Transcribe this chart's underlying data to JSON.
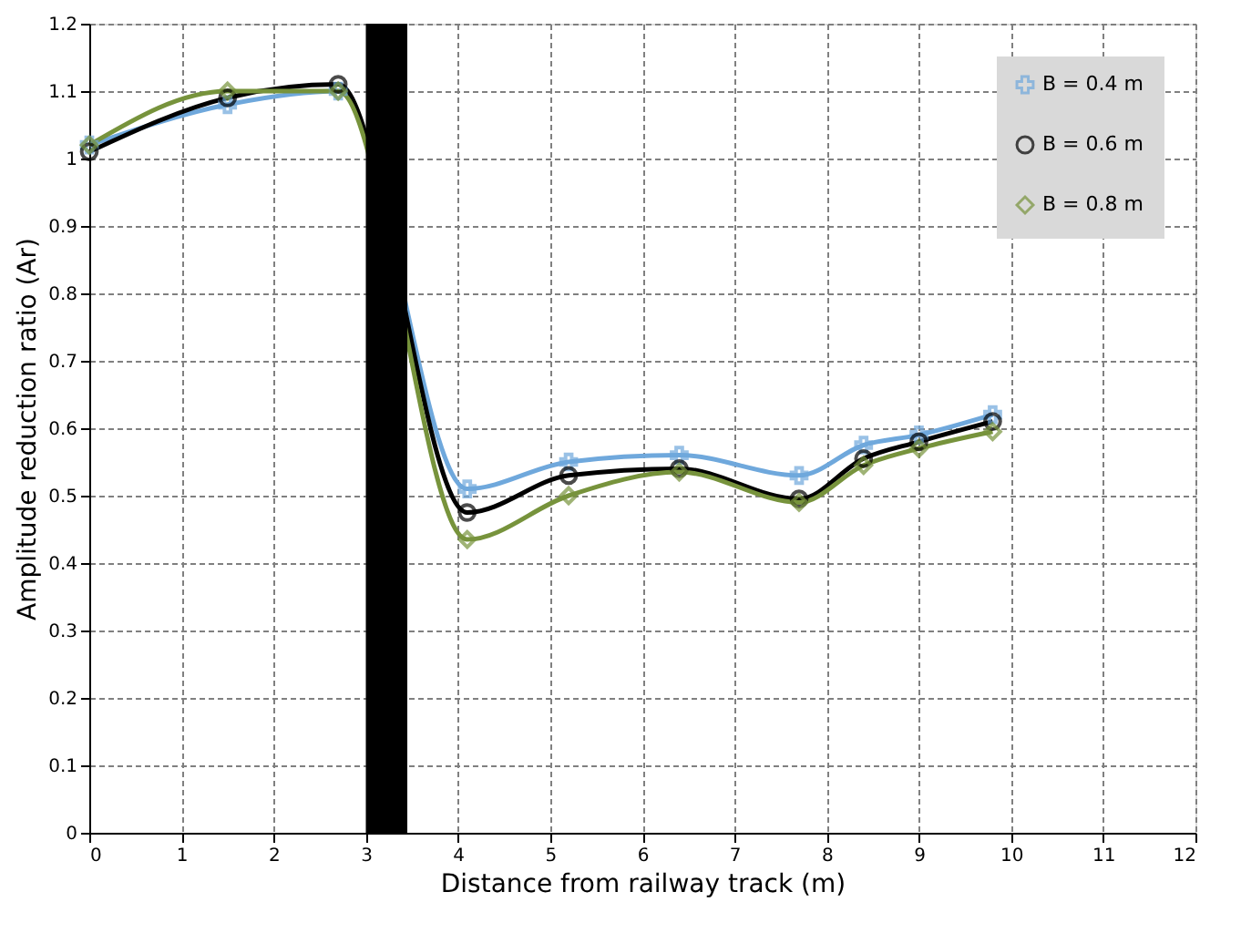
{
  "chart_data": {
    "type": "line",
    "xlabel": "Distance from railway track (m)",
    "ylabel": "Amplitude reduction ratio (Ar)",
    "xlim": [
      0,
      12
    ],
    "xticks": [
      0,
      1,
      2,
      3,
      4,
      5,
      6,
      7,
      8,
      9,
      10,
      11,
      12
    ],
    "ylim": [
      0,
      1.2
    ],
    "yticks": [
      0,
      0.1,
      0.2,
      0.3,
      0.4,
      0.5,
      0.6,
      0.7,
      0.8,
      0.9,
      1,
      1.1,
      1.2
    ],
    "grid": true,
    "legend": "top right",
    "line_style": "solid",
    "x": [
      0,
      1.5,
      2.7,
      4.1,
      5.2,
      6.4,
      7.7,
      8.4,
      9.0,
      9.8
    ],
    "series": [
      {
        "name": "B = 0.4 m",
        "color": "#6fa8dc",
        "marker": "cross",
        "values": [
          1.02,
          1.08,
          1.1,
          0.51,
          0.55,
          0.56,
          0.53,
          0.575,
          0.59,
          0.62
        ]
      },
      {
        "name": "B = 0.6 m",
        "color": "#000000",
        "marker": "circle",
        "values": [
          1.01,
          1.09,
          1.11,
          0.475,
          0.53,
          0.54,
          0.495,
          0.555,
          0.58,
          0.61
        ]
      },
      {
        "name": "B = 0.8 m",
        "color": "#77933c",
        "marker": "diamond",
        "values": [
          1.02,
          1.1,
          1.1,
          0.435,
          0.5,
          0.535,
          0.49,
          0.545,
          0.57,
          0.595
        ]
      }
    ],
    "bands": [
      {
        "axis": "x",
        "from": 3.0,
        "to": 3.45,
        "color": "#000000"
      }
    ]
  }
}
